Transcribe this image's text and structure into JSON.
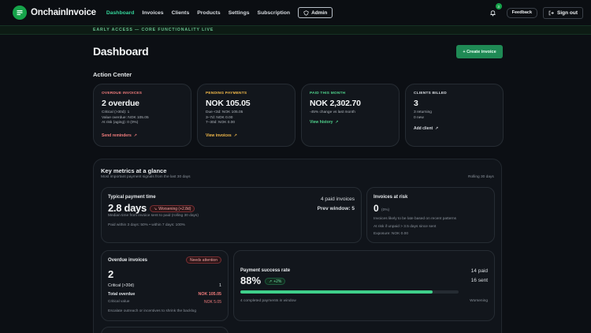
{
  "nav": {
    "brand": "OnchainInvoice",
    "links": [
      {
        "label": "Dashboard",
        "active": true
      },
      {
        "label": "Invoices",
        "active": false
      },
      {
        "label": "Clients",
        "active": false
      },
      {
        "label": "Products",
        "active": false
      },
      {
        "label": "Settings",
        "active": false
      },
      {
        "label": "Subscription",
        "active": false
      }
    ],
    "admin_label": "Admin",
    "notification_count": "3",
    "feedback_label": "Feedback",
    "signout_label": "Sign out"
  },
  "banner": "EARLY ACCESS — CORE FUNCTIONALITY LIVE",
  "page_title": "Dashboard",
  "create_invoice_label": "+ Create invoice",
  "action_center": {
    "title": "Action Center",
    "cards": [
      {
        "label": "OVERDUE INVOICES",
        "label_color": "#f07c7c",
        "value": "2 overdue",
        "lines": [
          "Critical (>30d): 1",
          "Value overdue: NOK 105.05",
          "At risk (aging): 0 (0%)"
        ],
        "link": "Send reminders",
        "link_color": "#f07c7c"
      },
      {
        "label": "PENDING PAYMENTS",
        "label_color": "#f0b84a",
        "value": "NOK 105.05",
        "lines": [
          "Due <3d: NOK 105.05",
          "3–7d: NOK 0.00",
          "7–30d: NOK 0.00"
        ],
        "link": "View invoices",
        "link_color": "#f0b84a"
      },
      {
        "label": "PAID THIS MONTH",
        "label_color": "#4fd18b",
        "value": "NOK 2,302.70",
        "lines": [
          "-45% change vs last month"
        ],
        "link": "View history",
        "link_color": "#4fd18b"
      },
      {
        "label": "CLIENTS BILLED",
        "label_color": "#d7dbe0",
        "value": "3",
        "lines": [
          "3 returning",
          "0 new"
        ],
        "link": "Add client",
        "link_color": "#d7dbe0"
      }
    ]
  },
  "key_metrics": {
    "title": "Key metrics at a glance",
    "subtitle": "Most important payment signals from the last 30 days",
    "rolling": "Rolling 30 days",
    "payment_time": {
      "title": "Typical payment time",
      "value": "2.8 days",
      "badge": "Worsening (+2.8d)",
      "desc": "Median time from invoice sent to paid (rolling 30 days)",
      "detail": "Paid within 3 days: 50% • within 7 days: 100%",
      "paid_invoices": "4 paid invoices",
      "prev_window": "Prev window: 5"
    },
    "at_risk": {
      "title": "Invoices at risk",
      "value": "0",
      "pct": "(0%)",
      "line1": "Invoices likely to be late based on recent patterns",
      "line2": "At risk if unpaid > 3.5 days since sent",
      "line3": "Exposure: NOK 0.00"
    },
    "overdue": {
      "title": "Overdue invoices",
      "badge": "Needs attention",
      "value": "2",
      "rows": [
        {
          "label": "Critical (>30d)",
          "value": "1"
        },
        {
          "label": "Total overdue",
          "value": "NOK 105.05"
        },
        {
          "label": "Critical value",
          "value": "NOK 5.05"
        }
      ],
      "note": "Escalate outreach or incentives to shrink the backlog"
    },
    "success": {
      "title": "Payment success rate",
      "value": "88%",
      "badge": "+2%",
      "paid": "14 paid",
      "sent": "16 sent",
      "progress": 0.88,
      "completed": "4 completed payments in window",
      "trend": "Worsening"
    }
  },
  "colors": {
    "accent": "#34d399",
    "danger": "#f07c7c",
    "warning": "#f0b84a",
    "progress": "#3fd08a"
  }
}
